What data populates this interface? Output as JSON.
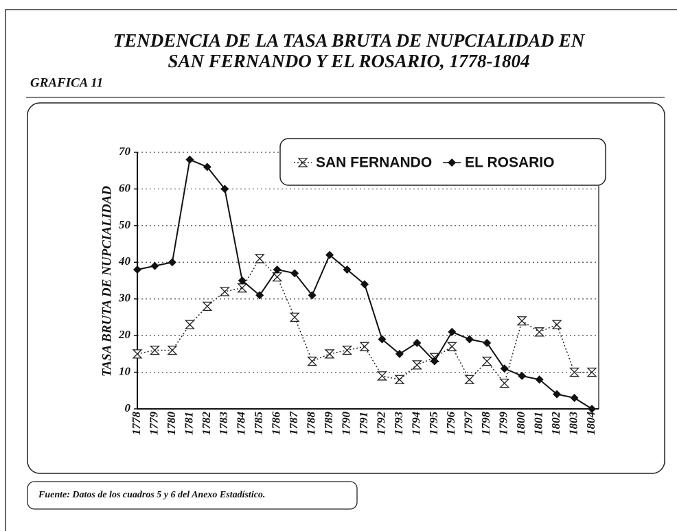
{
  "chart_data": {
    "type": "line",
    "title": [
      "TENDENCIA DE LA TASA BRUTA DE NUPCIALIDAD EN",
      "SAN FERNANDO Y EL ROSARIO, 1778-1804"
    ],
    "subtitle": "GRAFICA 11",
    "y_label": "TASA BRUTA DE NUPCIALIDAD",
    "source": "Fuente: Datos de los cuadros 5 y 6 del Anexo Estadístico.",
    "categories": [
      "1778",
      "1779",
      "1780",
      "1781",
      "1782",
      "1783",
      "1784",
      "1785",
      "1786",
      "1787",
      "1788",
      "1789",
      "1790",
      "1791",
      "1792",
      "1793",
      "1794",
      "1795",
      "1796",
      "1797",
      "1798",
      "1799",
      "1800",
      "1801",
      "1802",
      "1803",
      "1804"
    ],
    "series": [
      {
        "name": "SAN FERNANDO",
        "color": "#222222",
        "line_style": "dotted",
        "marker": "hourglass",
        "values": [
          15,
          16,
          16,
          23,
          28,
          32,
          33,
          41,
          36,
          25,
          13,
          15,
          16,
          17,
          9,
          8,
          12,
          14,
          17,
          8,
          13,
          7,
          24,
          21,
          23,
          10,
          10
        ]
      },
      {
        "name": "EL ROSARIO",
        "color": "#111111",
        "line_style": "solid",
        "marker": "diamond",
        "values": [
          38,
          39,
          40,
          68,
          66,
          60,
          35,
          31,
          38,
          37,
          31,
          42,
          38,
          34,
          19,
          15,
          18,
          13,
          21,
          19,
          18,
          11,
          9,
          8,
          4,
          3,
          0
        ]
      }
    ],
    "ylim": [
      0,
      70
    ],
    "yticks": [
      0,
      10,
      20,
      30,
      40,
      50,
      60,
      70
    ],
    "grid": true,
    "legend": "top-right"
  }
}
